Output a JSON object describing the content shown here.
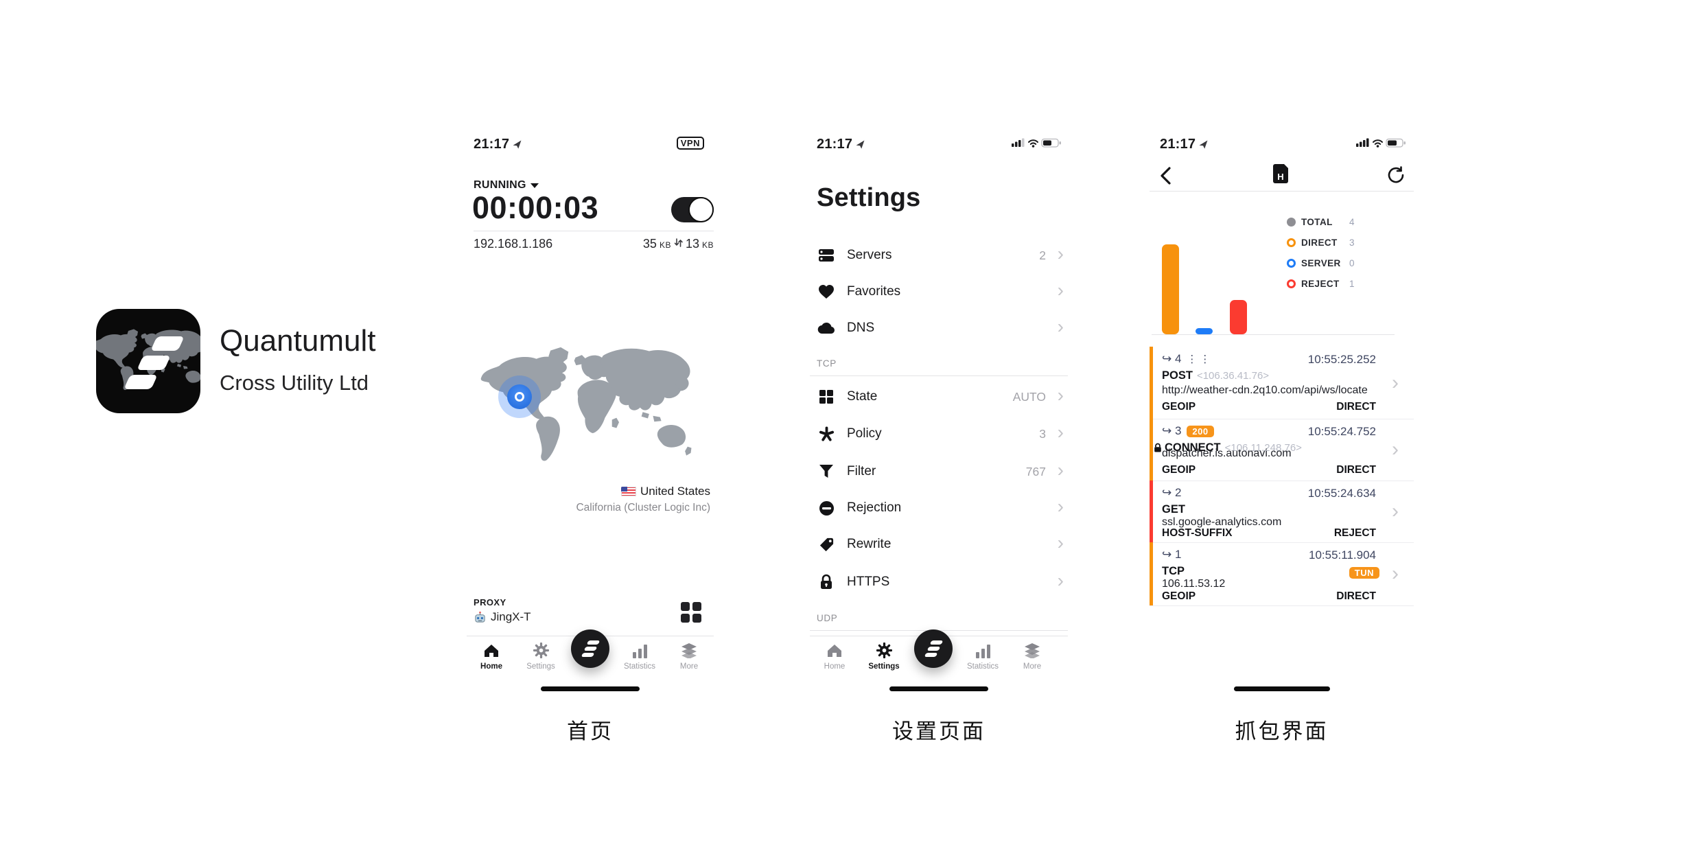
{
  "brand": {
    "name": "Quantumult",
    "company": "Cross Utility Ltd"
  },
  "tab_bar": {
    "home": "Home",
    "settings": "Settings",
    "statistics": "Statistics",
    "more": "More"
  },
  "home": {
    "status_time": "21:17",
    "vpn_badge": "VPN",
    "state": "RUNNING",
    "timer": "00:00:03",
    "ip": "192.168.1.186",
    "traffic_up": "35",
    "traffic_up_unit": "KB",
    "traffic_down": "13",
    "traffic_down_unit": "KB",
    "location_country": "United States",
    "location_detail": "California (Cluster Logic Inc)",
    "proxy_label": "PROXY",
    "proxy_name": "JingX-T",
    "caption": "首页"
  },
  "settings": {
    "status_time": "21:17",
    "title": "Settings",
    "section_tcp": "TCP",
    "section_udp": "UDP",
    "rows": [
      {
        "label": "Servers",
        "value": "2"
      },
      {
        "label": "Favorites",
        "value": ""
      },
      {
        "label": "DNS",
        "value": ""
      },
      {
        "label": "State",
        "value": "AUTO"
      },
      {
        "label": "Policy",
        "value": "3"
      },
      {
        "label": "Filter",
        "value": "767"
      },
      {
        "label": "Rejection",
        "value": ""
      },
      {
        "label": "Rewrite",
        "value": ""
      },
      {
        "label": "HTTPS",
        "value": ""
      }
    ],
    "caption": "设置页面"
  },
  "capture": {
    "status_time": "21:17",
    "legend": [
      {
        "label": "TOTAL",
        "value": "4"
      },
      {
        "label": "DIRECT",
        "value": "3"
      },
      {
        "label": "SERVER",
        "value": "0"
      },
      {
        "label": "REJECT",
        "value": "1"
      }
    ],
    "chart_data": {
      "type": "bar",
      "categories": [
        "DIRECT",
        "SERVER",
        "REJECT"
      ],
      "values": [
        3,
        0,
        1
      ],
      "colors": [
        "#F7920D",
        "#1E7CF7",
        "#FB3B30"
      ],
      "title": "",
      "xlabel": "",
      "ylabel": "",
      "ylim": [
        0,
        3
      ]
    },
    "icons": {
      "dots": "⋮⋮"
    },
    "rows": [
      {
        "seq": "↪ 4",
        "time": "10:55:25.252",
        "method": "POST",
        "ip": "<106.36.41.76>",
        "host": "http://weather-cdn.2q10.com/api/ws/locate",
        "rule": "GEOIP",
        "policy": "DIRECT"
      },
      {
        "seq": "↪ 3",
        "status_badge": "200",
        "time": "10:55:24.752",
        "method": "CONNECT",
        "ip": "<106.11.248.76>",
        "host": "dispatcher.is.autonavi.com",
        "rule": "GEOIP",
        "policy": "DIRECT"
      },
      {
        "seq": "↪ 2",
        "time": "10:55:24.634",
        "method": "GET",
        "ip": "",
        "host": "ssl.google-analytics.com",
        "rule": "HOST-SUFFIX",
        "policy": "REJECT"
      },
      {
        "seq": "↪ 1",
        "time": "10:55:11.904",
        "method": "TCP",
        "tun_badge": "TUN",
        "ip": "",
        "host": "106.11.53.12",
        "rule": "GEOIP",
        "policy": "DIRECT"
      }
    ],
    "caption": "抓包界面"
  },
  "colors": {
    "direct_orange": "#F7920D",
    "server_blue": "#1E7CF7",
    "reject_red": "#FB3B30",
    "total_gray": "#8E8E93",
    "map_gray": "#9BA1A8",
    "marker_blue": "#2F7CF6",
    "row_text_navy": "#3E4560",
    "toggle_on": "#1D1D1F"
  }
}
